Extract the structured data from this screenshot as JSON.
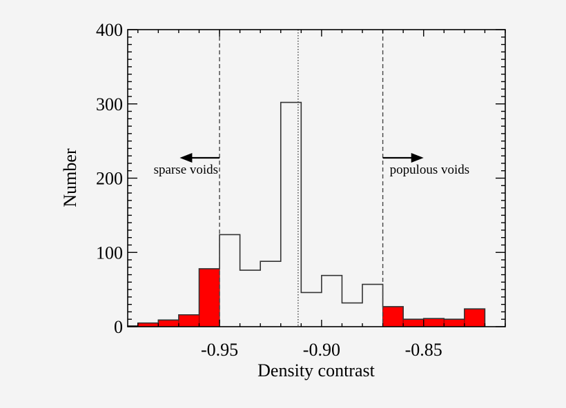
{
  "colors": {
    "background": "#f4f4f4",
    "axis": "#000000",
    "histogram_outline": "#333333",
    "highlight_fill": "#ff0000",
    "highlight_edge": "#8b0000"
  },
  "chart_data": {
    "type": "bar",
    "subtype": "histogram",
    "title": "",
    "xlabel": "Density contrast",
    "ylabel": "Number",
    "xlim": [
      -0.995,
      -0.81
    ],
    "ylim": [
      0,
      400
    ],
    "x_ticks": [
      -0.95,
      -0.9,
      -0.85
    ],
    "x_tick_labels": [
      "-0.95",
      "-0.90",
      "-0.85"
    ],
    "x_minor_step": 0.01,
    "y_ticks": [
      0,
      100,
      200,
      300,
      400
    ],
    "y_tick_labels": [
      "0",
      "100",
      "200",
      "300",
      "400"
    ],
    "y_minor_step": 10,
    "grid": false,
    "bins": [
      {
        "x0": -0.995,
        "x1": -0.99,
        "count": 1,
        "highlight": true
      },
      {
        "x0": -0.99,
        "x1": -0.98,
        "count": 5,
        "highlight": true
      },
      {
        "x0": -0.98,
        "x1": -0.97,
        "count": 9,
        "highlight": true
      },
      {
        "x0": -0.97,
        "x1": -0.96,
        "count": 16,
        "highlight": true
      },
      {
        "x0": -0.96,
        "x1": -0.95,
        "count": 78,
        "highlight": true
      },
      {
        "x0": -0.95,
        "x1": -0.94,
        "count": 124,
        "highlight": false
      },
      {
        "x0": -0.94,
        "x1": -0.93,
        "count": 76,
        "highlight": false
      },
      {
        "x0": -0.93,
        "x1": -0.92,
        "count": 88,
        "highlight": false
      },
      {
        "x0": -0.92,
        "x1": -0.91,
        "count": 302,
        "highlight": false
      },
      {
        "x0": -0.91,
        "x1": -0.9,
        "count": 46,
        "highlight": false
      },
      {
        "x0": -0.9,
        "x1": -0.89,
        "count": 69,
        "highlight": false
      },
      {
        "x0": -0.89,
        "x1": -0.88,
        "count": 32,
        "highlight": false
      },
      {
        "x0": -0.88,
        "x1": -0.87,
        "count": 57,
        "highlight": false
      },
      {
        "x0": -0.87,
        "x1": -0.86,
        "count": 27,
        "highlight": true
      },
      {
        "x0": -0.86,
        "x1": -0.85,
        "count": 10,
        "highlight": true
      },
      {
        "x0": -0.85,
        "x1": -0.84,
        "count": 11,
        "highlight": true
      },
      {
        "x0": -0.84,
        "x1": -0.83,
        "count": 10,
        "highlight": true
      },
      {
        "x0": -0.83,
        "x1": -0.82,
        "count": 24,
        "highlight": true
      }
    ],
    "reference_lines": [
      {
        "x": -0.95,
        "style": "dashed",
        "meaning": "sparse voids threshold"
      },
      {
        "x": -0.9115,
        "style": "dotted",
        "meaning": "median"
      },
      {
        "x": -0.87,
        "style": "dashed",
        "meaning": "populous voids threshold"
      }
    ],
    "annotations": [
      {
        "text": "sparse voids",
        "x_from": -0.95,
        "x_to": -0.9695,
        "arrow_y": 229,
        "direction": "left"
      },
      {
        "text": "populous voids",
        "x_from": -0.87,
        "x_to": -0.85,
        "arrow_y": 229,
        "direction": "right"
      }
    ]
  }
}
